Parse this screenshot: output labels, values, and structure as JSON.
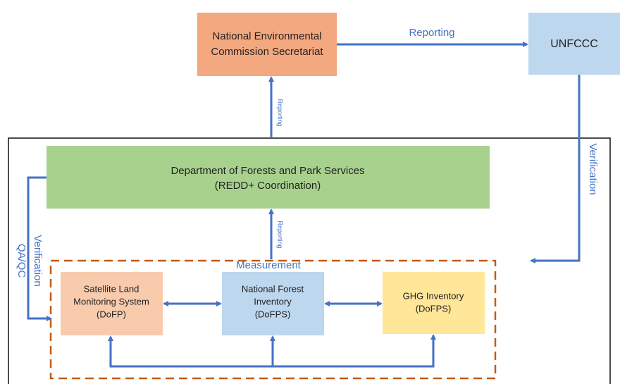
{
  "nodes": [
    {
      "lines": [
        "National Environmental",
        "Commission Secretariat"
      ]
    },
    {
      "lines": [
        "UNFCCC"
      ]
    },
    {
      "lines": [
        "Department of Forests and Park Services",
        "(REDD+ Coordination)"
      ]
    },
    {
      "lines": [
        "Satellite Land",
        "Monitoring System",
        "(DoFP)"
      ]
    },
    {
      "lines": [
        "National Forest",
        "Inventory",
        "(DoFPS)"
      ]
    },
    {
      "lines": [
        "GHG Inventory",
        "(DoFPS)"
      ]
    }
  ],
  "group_label": "Measurement",
  "edge_labels": [
    "Reporting",
    "Verification",
    "Reporting",
    "Reporting",
    "Verification",
    "QA/QC"
  ]
}
